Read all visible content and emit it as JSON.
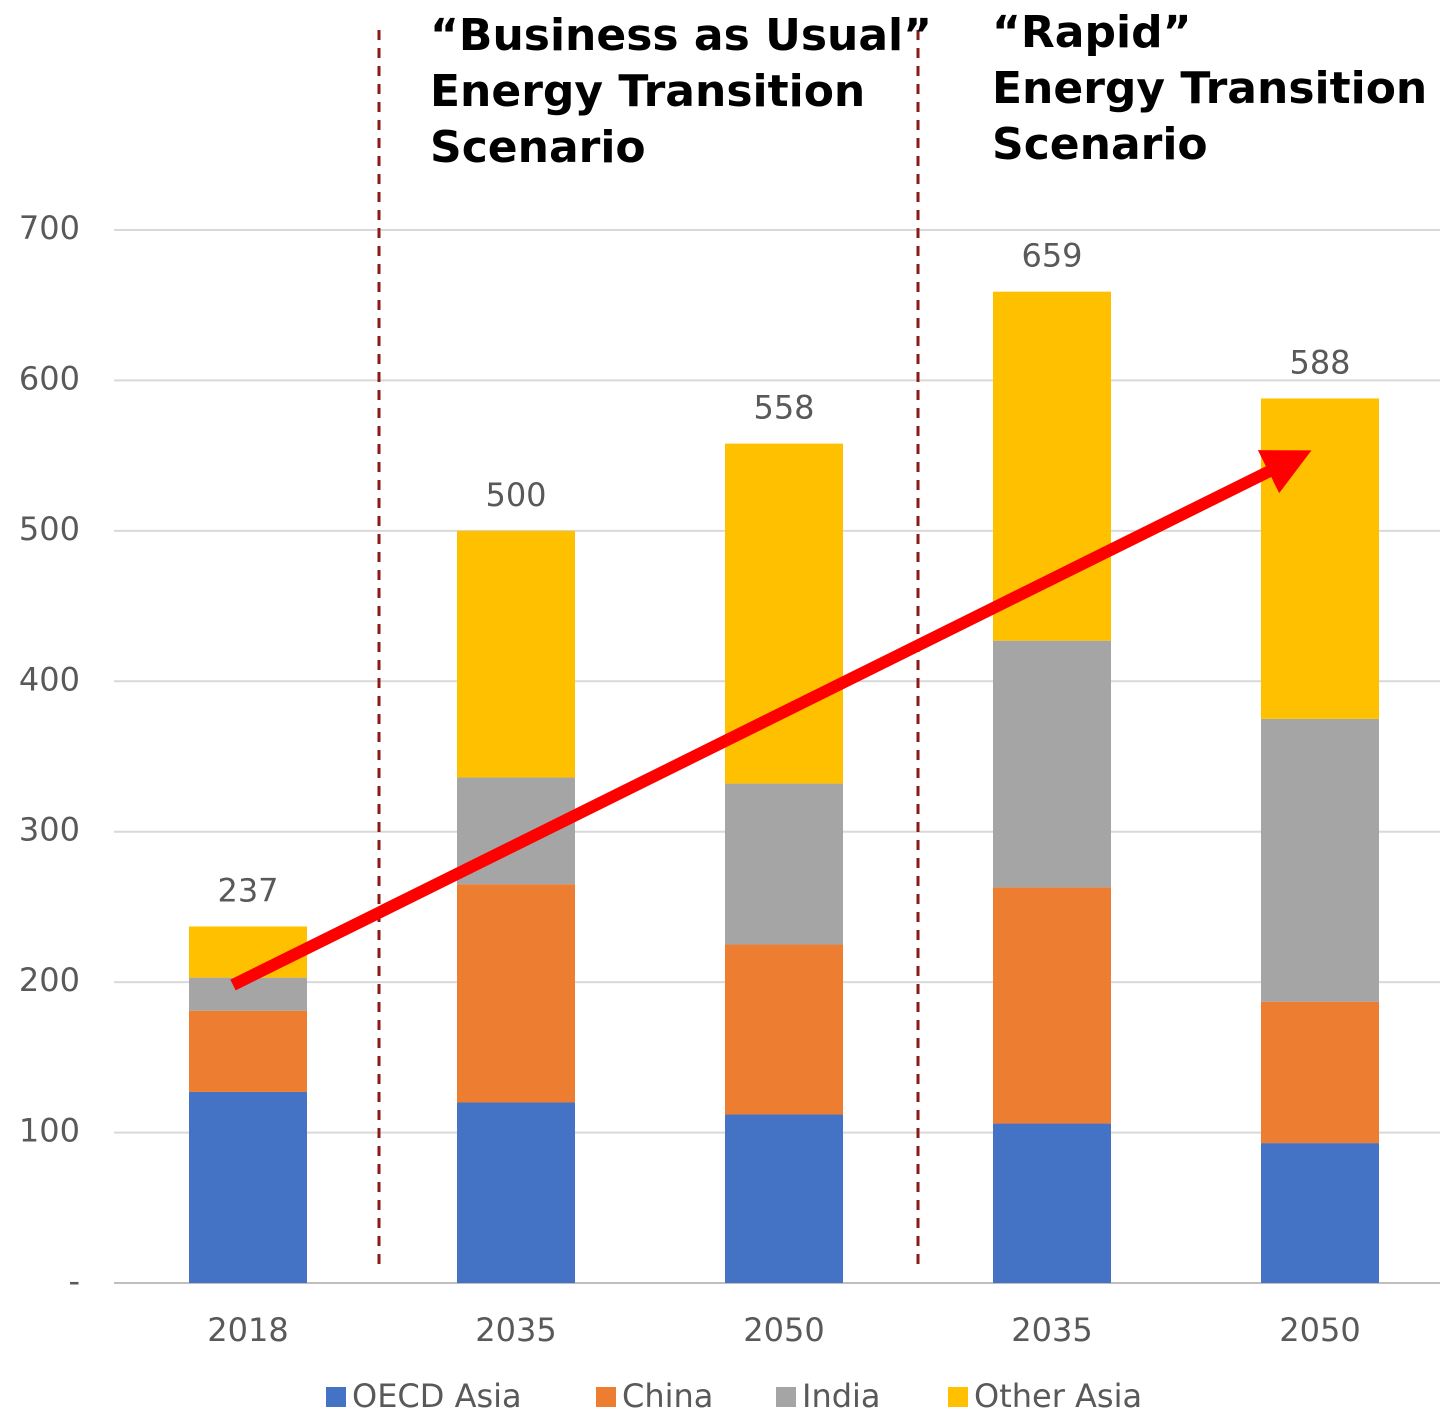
{
  "chart_data": {
    "type": "stacked-bar",
    "categories": [
      "2018",
      "2035",
      "2050",
      "2035",
      "2050"
    ],
    "series": [
      {
        "name": "OECD Asia",
        "color": "#4472c4",
        "values": [
          127,
          120,
          112,
          106,
          93
        ]
      },
      {
        "name": "China",
        "color": "#ed7d31",
        "values": [
          54,
          145,
          113,
          157,
          94
        ]
      },
      {
        "name": "India",
        "color": "#a5a5a5",
        "values": [
          22,
          71,
          107,
          164,
          188
        ]
      },
      {
        "name": "Other Asia",
        "color": "#ffc000",
        "values": [
          34,
          164,
          226,
          232,
          213
        ]
      }
    ],
    "totals": [
      237,
      500,
      558,
      659,
      588
    ],
    "annotations": [
      {
        "lines": [
          "“Business as Usual”",
          "Energy Transition",
          "Scenario"
        ]
      },
      {
        "lines": [
          "“Rapid”",
          "Energy Transition",
          "Scenario"
        ]
      }
    ],
    "ylim": [
      0,
      700
    ],
    "yticks": [
      {
        "value": 0,
        "label": "-"
      },
      100,
      200,
      300,
      400,
      500,
      600,
      700
    ],
    "grid": true,
    "legend": "bottom"
  }
}
